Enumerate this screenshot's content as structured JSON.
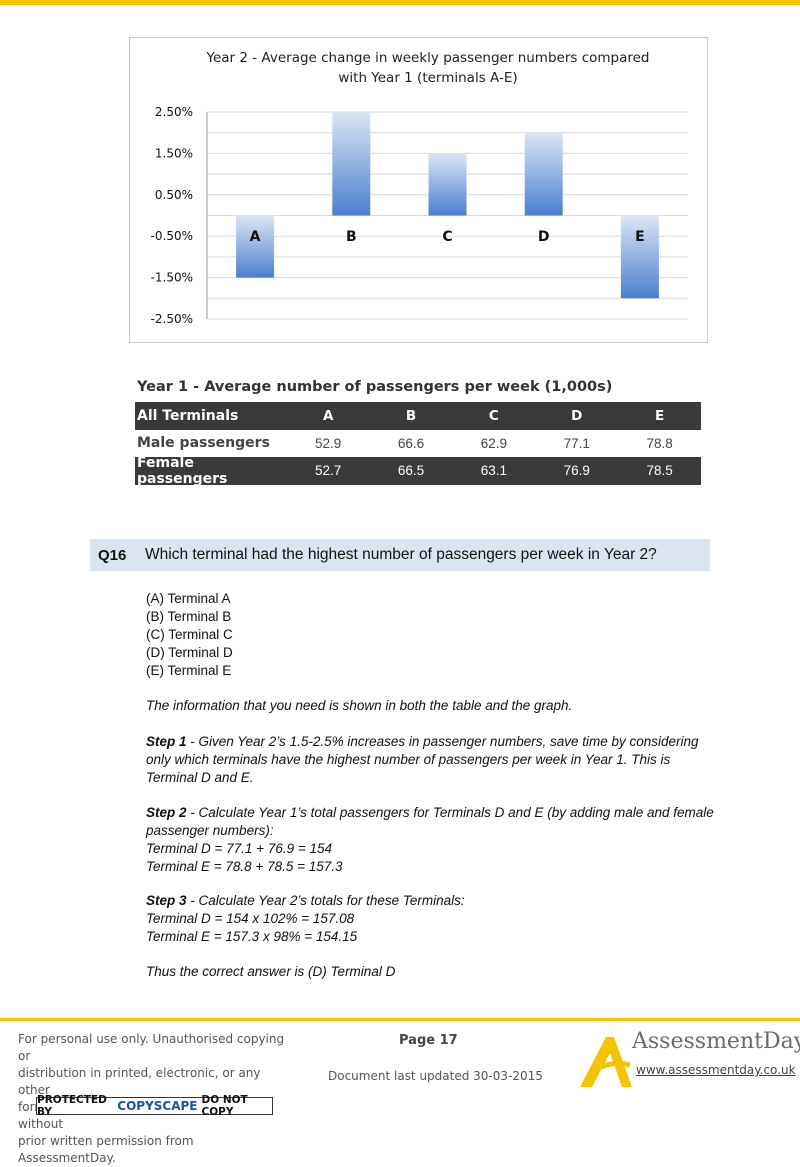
{
  "chart_data": {
    "type": "bar",
    "title_lines": [
      "Year 2 - Average change in weekly passenger numbers compared",
      "with Year 1 (terminals A-E)"
    ],
    "categories": [
      "A",
      "B",
      "C",
      "D",
      "E"
    ],
    "values": [
      -1.5,
      2.5,
      1.5,
      2.0,
      -2.0
    ],
    "y_ticks": [
      "2.50%",
      "1.50%",
      "0.50%",
      "-0.50%",
      "-1.50%",
      "-2.50%"
    ],
    "ylim": [
      -2.5,
      2.5
    ],
    "grid": true,
    "colors": {
      "bar_dark": "#4a7fd0",
      "bar_light": "#dbe6f3",
      "grid": "#d9d9d9"
    }
  },
  "table": {
    "title": "Year 1 - Average number of passengers per week (1,000s)",
    "header": {
      "label": "All Terminals",
      "cols": [
        "A",
        "B",
        "C",
        "D",
        "E"
      ]
    },
    "rows": [
      {
        "label": "Male passengers",
        "values": [
          "52.9",
          "66.6",
          "62.9",
          "77.1",
          "78.8"
        ]
      },
      {
        "label": "Female passengers",
        "values": [
          "52.7",
          "66.5",
          "63.1",
          "76.9",
          "78.5"
        ]
      }
    ]
  },
  "question": {
    "number": "Q16",
    "text": "Which terminal had the highest number of passengers per week in Year 2?",
    "options": [
      "(A) Terminal A",
      "(B) Terminal B",
      "(C) Terminal C",
      "(D) Terminal D",
      "(E) Terminal E"
    ]
  },
  "explanation": {
    "intro": "The information that you need is shown in both the table and the graph.",
    "step1_label": "Step 1",
    "step1_text": " - Given Year 2’s 1.5-2.5% increases in passenger numbers, save time by considering only which terminals have the highest number of passengers per week in Year 1. This is Terminal D and E.",
    "step2_label": "Step 2",
    "step2_text": " - Calculate Year 1’s total passengers for Terminals D and E (by adding male and female passenger numbers):",
    "step2_line1": "Terminal D = 77.1 + 76.9 = 154",
    "step2_line2": "Terminal E = 78.8 + 78.5 = 157.3",
    "step3_label": "Step 3",
    "step3_text": " - Calculate Year 2’s totals for these Terminals:",
    "step3_line1": "Terminal D = 154 x 102% = 157.08",
    "step3_line2": "Terminal E = 157.3 x 98% = 154.15",
    "conclusion": "Thus the correct answer is (D) Terminal D"
  },
  "footer": {
    "notice_lines": [
      "For personal use only. Unauthorised copying or",
      "distribution in printed, electronic, or any other",
      "form in whole or in part, is prohibited without",
      "prior written permission from AssessmentDay."
    ],
    "copyscape_left": "PROTECTED BY",
    "copyscape_brand": "COPYSCAPE",
    "copyscape_right": "DO NOT COPY",
    "page": "Page 17",
    "updated": "Document last updated 30-03-2015",
    "logo_text": "AssessmentDay",
    "logo_url": "www.assessmentday.co.uk",
    "accent_color": "#f5c400"
  }
}
